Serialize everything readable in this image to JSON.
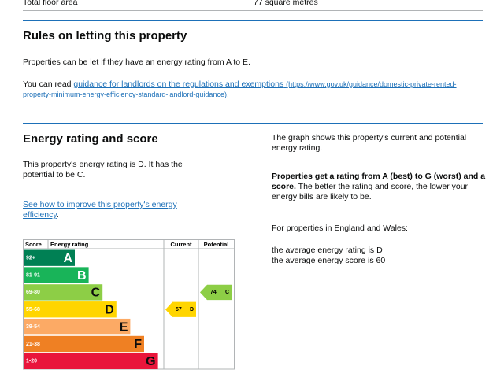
{
  "summary_row": {
    "label": "Total floor area",
    "value": "77 square metres"
  },
  "letting": {
    "heading": "Rules on letting this property",
    "paragraph": "Properties can be let if they have an energy rating from A to E.",
    "link_intro": "You can read",
    "link_text": "guidance for landlords on the regulations and exemptions",
    "link_url": "(https://www.gov.uk/guidance/domestic-private-rented-property-minimum-energy-efficiency-standard-landlord-guidance)",
    "link_end": "."
  },
  "energy": {
    "heading": "Energy rating and score",
    "description": "This property's energy rating is D. It has the potential to be C.",
    "improve_link": "See how to improve this property's energy efficiency",
    "improve_end": ".",
    "graph_note": "The graph shows this property's current and potential energy rating.",
    "bold_lead": "Properties get a rating from A (best) to G (worst) and a score.",
    "lead_rest": "The better the rating and score, the lower your energy bills are likely to be.",
    "region_note": "For properties in England and Wales:",
    "averages": [
      "the average energy rating is D",
      "the average energy score is 60"
    ]
  },
  "rating_chart": {
    "headers": [
      "Score",
      "Energy rating",
      "Current",
      "Potential"
    ],
    "bands": [
      {
        "score": "92+",
        "letter": "A",
        "color": "#008054"
      },
      {
        "score": "81-91",
        "letter": "B",
        "color": "#19b459"
      },
      {
        "score": "69-80",
        "letter": "C",
        "color": "#8dce46"
      },
      {
        "score": "55-68",
        "letter": "D",
        "color": "#ffd500"
      },
      {
        "score": "39-54",
        "letter": "E",
        "color": "#fcaa65"
      },
      {
        "score": "21-38",
        "letter": "F",
        "color": "#ef8023"
      },
      {
        "score": "1-20",
        "letter": "G",
        "color": "#e9153b"
      }
    ],
    "current": {
      "score": 57,
      "rating": "D"
    },
    "potential": {
      "score": 74,
      "rating": "C"
    }
  }
}
